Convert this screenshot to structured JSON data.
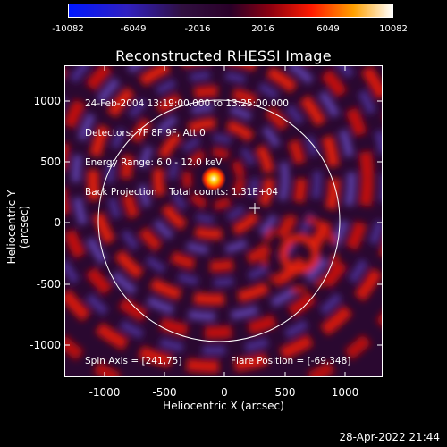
{
  "colorbar": {
    "ticks": [
      "-10082",
      "-6049",
      "-2016",
      "2016",
      "6049",
      "10082"
    ]
  },
  "plot": {
    "title": "Reconstructed RHESSI Image",
    "xlabel": "Heliocentric X (arcsec)",
    "ylabel": "Heliocentric Y (arcsec)",
    "xticks": [
      "-1000",
      "-500",
      "0",
      "500",
      "1000"
    ],
    "yticks": [
      "1000",
      "500",
      "0",
      "-500",
      "-1000"
    ],
    "info_lines": [
      "24-Feb-2004 13:19:00.000 to 13:25:00.000",
      "Detectors: 7F 8F 9F, Att 0",
      "Energy Range: 6.0 - 12.0 keV",
      "Back Projection    Total counts: 1.31E+04"
    ],
    "spin_axis": "Spin Axis = [241,75]",
    "flare_position": "Flare Position = [-69,348]"
  },
  "timestamp": "28-Apr-2022 21:44"
}
